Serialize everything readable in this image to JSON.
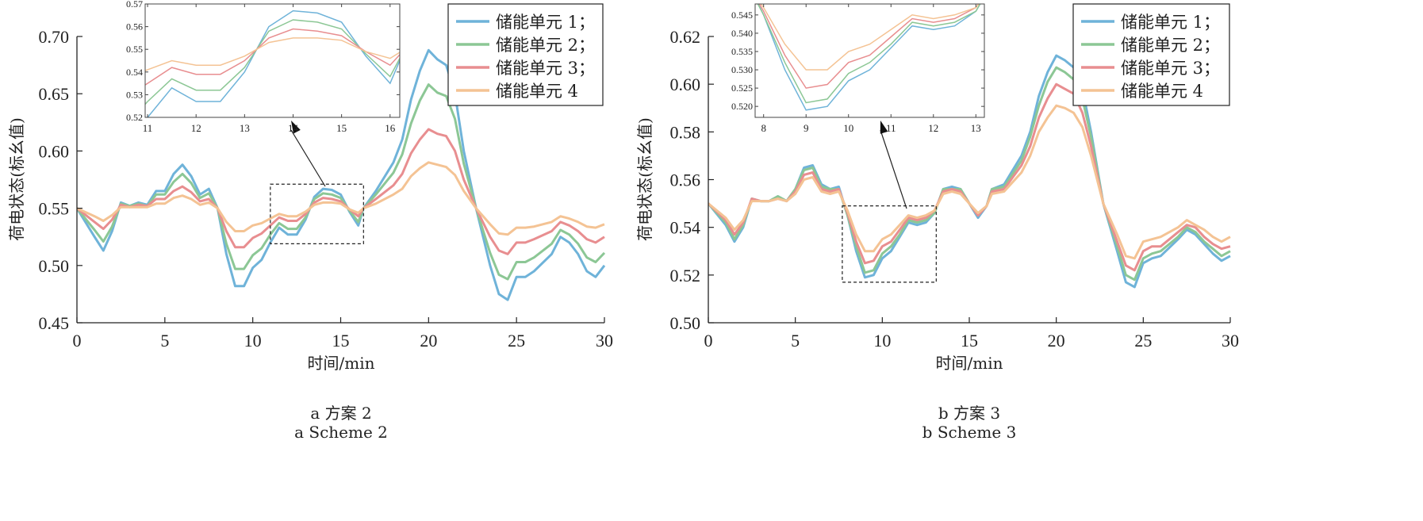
{
  "colors": {
    "unit1": "#6fb3d9",
    "unit2": "#8cc795",
    "unit3": "#e88e90",
    "unit4": "#f4c394"
  },
  "chart_data": [
    {
      "type": "line",
      "caption_cn": "a  方案  2",
      "caption_en": "a  Scheme 2",
      "xlabel": "时间/min",
      "ylabel": "荷电状态(标幺值)",
      "xlim": [
        0,
        30
      ],
      "ylim": [
        0.45,
        0.7
      ],
      "xticks": [
        "0",
        "5",
        "10",
        "15",
        "20",
        "25",
        "30"
      ],
      "yticks": [
        "0.45",
        "0.50",
        "0.55",
        "0.60",
        "0.65",
        "0.70"
      ],
      "grid": false,
      "legend_placement": "top-right",
      "x": [
        0,
        1,
        1.5,
        2,
        2.5,
        3,
        3.5,
        4,
        4.5,
        5,
        5.5,
        6,
        6.5,
        7,
        7.5,
        8,
        8.5,
        9,
        9.5,
        10,
        10.5,
        11,
        11.5,
        12,
        12.5,
        13,
        13.5,
        14,
        14.5,
        15,
        15.5,
        16,
        16.3,
        17,
        18,
        18.5,
        19,
        19.5,
        20,
        20.5,
        21,
        21.5,
        22,
        22.7,
        23.5,
        24,
        24.5,
        25,
        25.5,
        26,
        27,
        27.5,
        28,
        28.5,
        29,
        29.5,
        30
      ],
      "series": [
        {
          "name": "储能单元 1；",
          "color_key": "unit1",
          "values": [
            0.55,
            0.525,
            0.513,
            0.53,
            0.555,
            0.552,
            0.555,
            0.553,
            0.565,
            0.565,
            0.58,
            0.588,
            0.578,
            0.562,
            0.567,
            0.55,
            0.51,
            0.482,
            0.482,
            0.498,
            0.505,
            0.52,
            0.533,
            0.527,
            0.527,
            0.54,
            0.56,
            0.567,
            0.566,
            0.562,
            0.547,
            0.535,
            0.55,
            0.565,
            0.59,
            0.61,
            0.645,
            0.67,
            0.688,
            0.68,
            0.675,
            0.65,
            0.6,
            0.55,
            0.5,
            0.475,
            0.47,
            0.49,
            0.49,
            0.495,
            0.51,
            0.525,
            0.52,
            0.51,
            0.495,
            0.49,
            0.5
          ]
        },
        {
          "name": "储能单元 2；",
          "color_key": "unit2",
          "values": [
            0.55,
            0.531,
            0.521,
            0.534,
            0.554,
            0.552,
            0.554,
            0.552,
            0.562,
            0.562,
            0.573,
            0.58,
            0.572,
            0.559,
            0.563,
            0.55,
            0.519,
            0.497,
            0.497,
            0.509,
            0.515,
            0.527,
            0.537,
            0.532,
            0.532,
            0.542,
            0.558,
            0.563,
            0.562,
            0.559,
            0.548,
            0.538,
            0.55,
            0.562,
            0.581,
            0.597,
            0.624,
            0.644,
            0.658,
            0.651,
            0.648,
            0.628,
            0.589,
            0.55,
            0.511,
            0.492,
            0.488,
            0.503,
            0.503,
            0.507,
            0.519,
            0.531,
            0.527,
            0.519,
            0.507,
            0.503,
            0.511
          ]
        },
        {
          "name": "储能单元 3；",
          "color_key": "unit3",
          "values": [
            0.55,
            0.538,
            0.532,
            0.54,
            0.553,
            0.551,
            0.553,
            0.552,
            0.558,
            0.558,
            0.565,
            0.569,
            0.564,
            0.556,
            0.558,
            0.55,
            0.53,
            0.516,
            0.516,
            0.524,
            0.528,
            0.535,
            0.542,
            0.539,
            0.539,
            0.545,
            0.555,
            0.559,
            0.558,
            0.556,
            0.549,
            0.543,
            0.55,
            0.558,
            0.57,
            0.58,
            0.598,
            0.61,
            0.619,
            0.615,
            0.613,
            0.6,
            0.575,
            0.55,
            0.525,
            0.513,
            0.51,
            0.52,
            0.52,
            0.523,
            0.53,
            0.538,
            0.535,
            0.53,
            0.523,
            0.52,
            0.525
          ]
        },
        {
          "name": "储能单元 4",
          "color_key": "unit4",
          "values": [
            0.55,
            0.543,
            0.539,
            0.544,
            0.551,
            0.551,
            0.551,
            0.551,
            0.554,
            0.554,
            0.559,
            0.561,
            0.558,
            0.553,
            0.555,
            0.55,
            0.538,
            0.53,
            0.53,
            0.535,
            0.537,
            0.541,
            0.545,
            0.543,
            0.543,
            0.547,
            0.553,
            0.555,
            0.555,
            0.554,
            0.549,
            0.546,
            0.55,
            0.554,
            0.562,
            0.567,
            0.578,
            0.585,
            0.59,
            0.588,
            0.586,
            0.579,
            0.565,
            0.55,
            0.536,
            0.528,
            0.527,
            0.533,
            0.533,
            0.534,
            0.538,
            0.543,
            0.541,
            0.538,
            0.534,
            0.533,
            0.536
          ]
        }
      ],
      "inset": {
        "xlim": [
          10.95,
          16.2
        ],
        "ylim": [
          0.52,
          0.57
        ],
        "xticks": [
          "11",
          "12",
          "13",
          "14",
          "15",
          "16"
        ],
        "yticks": [
          "0.52",
          "0.53",
          "0.54",
          "0.55",
          "0.56",
          "0.57"
        ],
        "zoom_region": {
          "x": [
            11,
            16.3
          ],
          "y": [
            0.519,
            0.571
          ]
        }
      }
    },
    {
      "type": "line",
      "caption_cn": "b  方案  3",
      "caption_en": "b  Scheme 3",
      "xlabel": "时间/min",
      "ylabel": "荷电状态(标幺值)",
      "xlim": [
        0,
        30
      ],
      "ylim": [
        0.5,
        0.62
      ],
      "xticks": [
        "0",
        "5",
        "10",
        "15",
        "20",
        "25",
        "30"
      ],
      "yticks": [
        "0.50",
        "0.52",
        "0.54",
        "0.56",
        "0.58",
        "0.60",
        "0.62"
      ],
      "grid": false,
      "legend_placement": "top-right",
      "x": [
        0,
        1,
        1.5,
        2,
        2.5,
        3,
        3.5,
        4,
        4.5,
        5,
        5.5,
        6,
        6.5,
        7,
        7.5,
        8,
        8.5,
        9,
        9.5,
        10,
        10.5,
        11,
        11.5,
        12,
        12.5,
        13,
        13.5,
        14,
        14.5,
        15,
        15.5,
        16,
        16.3,
        17,
        18,
        18.5,
        19,
        19.5,
        20,
        20.5,
        21,
        21.5,
        22,
        22.7,
        23.5,
        24,
        24.5,
        25,
        25.5,
        26,
        27,
        27.5,
        28,
        28.5,
        29,
        29.5,
        30
      ],
      "series": [
        {
          "name": "储能单元 1；",
          "color_key": "unit1",
          "values": [
            0.55,
            0.541,
            0.534,
            0.54,
            0.552,
            0.551,
            0.551,
            0.553,
            0.551,
            0.556,
            0.565,
            0.566,
            0.558,
            0.556,
            0.557,
            0.545,
            0.53,
            0.519,
            0.52,
            0.527,
            0.53,
            0.536,
            0.542,
            0.541,
            0.542,
            0.546,
            0.556,
            0.557,
            0.556,
            0.55,
            0.544,
            0.549,
            0.556,
            0.558,
            0.57,
            0.58,
            0.595,
            0.605,
            0.612,
            0.61,
            0.607,
            0.598,
            0.58,
            0.55,
            0.53,
            0.517,
            0.515,
            0.525,
            0.527,
            0.528,
            0.535,
            0.539,
            0.537,
            0.533,
            0.529,
            0.526,
            0.528
          ]
        },
        {
          "name": "储能单元 2；",
          "color_key": "unit2",
          "values": [
            0.55,
            0.542,
            0.535,
            0.541,
            0.552,
            0.551,
            0.551,
            0.553,
            0.551,
            0.556,
            0.564,
            0.565,
            0.557,
            0.556,
            0.556,
            0.545,
            0.532,
            0.521,
            0.522,
            0.529,
            0.532,
            0.537,
            0.543,
            0.542,
            0.543,
            0.546,
            0.556,
            0.556,
            0.556,
            0.55,
            0.545,
            0.549,
            0.556,
            0.557,
            0.568,
            0.578,
            0.591,
            0.601,
            0.607,
            0.605,
            0.602,
            0.594,
            0.578,
            0.55,
            0.532,
            0.52,
            0.518,
            0.527,
            0.529,
            0.53,
            0.536,
            0.54,
            0.538,
            0.534,
            0.531,
            0.528,
            0.53
          ]
        },
        {
          "name": "储能单元 3；",
          "color_key": "unit3",
          "values": [
            0.55,
            0.543,
            0.537,
            0.542,
            0.552,
            0.551,
            0.551,
            0.552,
            0.551,
            0.555,
            0.562,
            0.563,
            0.556,
            0.555,
            0.556,
            0.546,
            0.534,
            0.525,
            0.526,
            0.532,
            0.534,
            0.539,
            0.544,
            0.543,
            0.544,
            0.547,
            0.555,
            0.556,
            0.555,
            0.55,
            0.545,
            0.549,
            0.555,
            0.556,
            0.566,
            0.574,
            0.586,
            0.594,
            0.6,
            0.598,
            0.596,
            0.588,
            0.574,
            0.55,
            0.534,
            0.524,
            0.522,
            0.53,
            0.532,
            0.532,
            0.538,
            0.541,
            0.54,
            0.536,
            0.533,
            0.531,
            0.532
          ]
        },
        {
          "name": "储能单元 4",
          "color_key": "unit4",
          "values": [
            0.55,
            0.544,
            0.539,
            0.543,
            0.551,
            0.551,
            0.551,
            0.552,
            0.551,
            0.554,
            0.56,
            0.561,
            0.555,
            0.554,
            0.555,
            0.547,
            0.537,
            0.53,
            0.53,
            0.535,
            0.537,
            0.541,
            0.545,
            0.544,
            0.545,
            0.547,
            0.554,
            0.555,
            0.554,
            0.55,
            0.546,
            0.549,
            0.554,
            0.555,
            0.563,
            0.57,
            0.58,
            0.586,
            0.591,
            0.59,
            0.588,
            0.582,
            0.57,
            0.55,
            0.537,
            0.528,
            0.527,
            0.534,
            0.535,
            0.536,
            0.54,
            0.543,
            0.541,
            0.539,
            0.536,
            0.534,
            0.536
          ]
        }
      ],
      "inset": {
        "xlim": [
          7.8,
          13.2
        ],
        "ylim": [
          0.517,
          0.548
        ],
        "xticks": [
          "8",
          "9",
          "10",
          "11",
          "12",
          "13"
        ],
        "yticks": [
          "0.520",
          "0.525",
          "0.530",
          "0.535",
          "0.540",
          "0.545"
        ],
        "zoom_region": {
          "x": [
            7.7,
            13.1
          ],
          "y": [
            0.517,
            0.549
          ]
        }
      }
    }
  ]
}
